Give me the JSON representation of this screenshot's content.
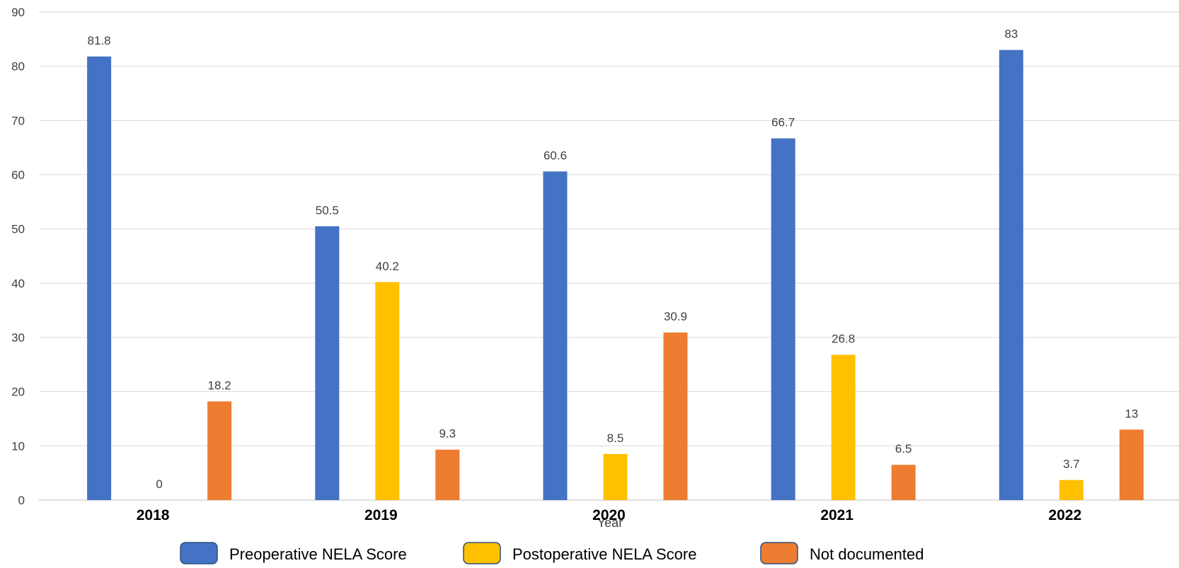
{
  "chart_data": {
    "type": "bar",
    "title": "",
    "xlabel": "Year",
    "ylabel": "",
    "ylim": [
      0,
      90
    ],
    "yticks": [
      0,
      10,
      20,
      30,
      40,
      50,
      60,
      70,
      80,
      90
    ],
    "grid": true,
    "legend_position": "bottom",
    "categories": [
      "2018",
      "2019",
      "2020",
      "2021",
      "2022"
    ],
    "series": [
      {
        "name": "Preoperative NELA Score",
        "color": "#4472C4",
        "values": [
          81.8,
          50.5,
          60.6,
          66.7,
          83
        ]
      },
      {
        "name": "Postoperative NELA Score",
        "color": "#FFC000",
        "values": [
          0,
          40.2,
          8.5,
          26.8,
          3.7
        ]
      },
      {
        "name": "Not documented",
        "color": "#ED7D31",
        "values": [
          18.2,
          9.3,
          30.9,
          6.5,
          13
        ]
      }
    ]
  }
}
